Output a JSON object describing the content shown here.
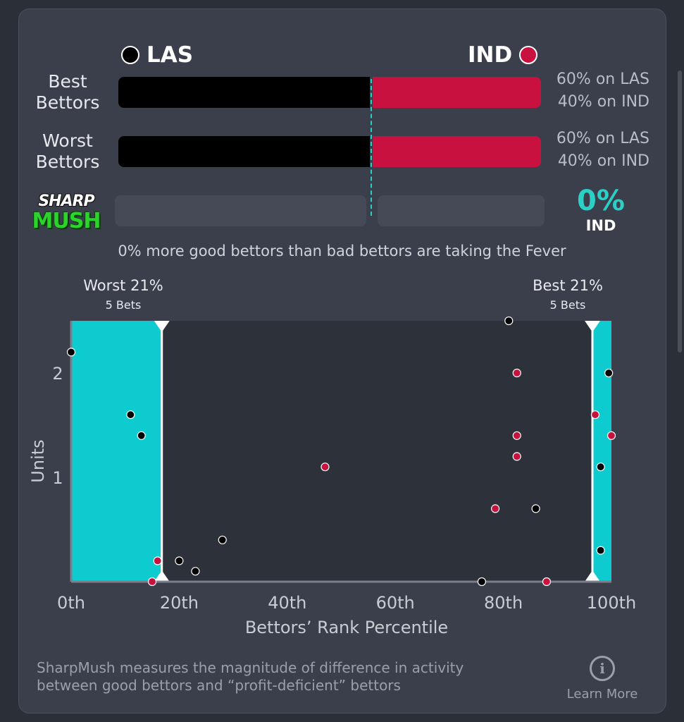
{
  "teams": {
    "left": {
      "code": "LAS",
      "color": "#000000"
    },
    "right": {
      "code": "IND",
      "color": "#c8113f"
    }
  },
  "rows": [
    {
      "label_line1": "Best",
      "label_line2": "Bettors",
      "left_pct": 60,
      "right_pct": 40,
      "left_text": "60% on LAS",
      "right_text": "40% on IND"
    },
    {
      "label_line1": "Worst",
      "label_line2": "Bettors",
      "left_pct": 60,
      "right_pct": 40,
      "left_text": "60% on LAS",
      "right_text": "40% on IND"
    }
  ],
  "sharpmush": {
    "logo_top": "SHARP",
    "logo_bottom": "MUSH",
    "value": "0%",
    "team": "IND",
    "fill_fraction": 0
  },
  "summary_text": "0% more good bettors than bad bettors are taking the Fever",
  "chart_data": {
    "type": "scatter",
    "xlabel": "Bettors’ Rank Percentile",
    "ylabel": "Units",
    "xlim": [
      0,
      100
    ],
    "ylim": [
      0,
      2.5
    ],
    "x_ticks": [
      0,
      20,
      40,
      60,
      80,
      100
    ],
    "x_tick_labels": [
      "0th",
      "20th",
      "40th",
      "60th",
      "80th",
      "100th"
    ],
    "y_ticks": [
      1,
      2
    ],
    "y_tick_labels": [
      "1",
      "2"
    ],
    "worst_region": {
      "label": "Worst 21%",
      "sublabel": "5 Bets",
      "x_from": 0,
      "x_to": 16
    },
    "best_region": {
      "label": "Best 21%",
      "sublabel": "5 Bets",
      "x_from": 97,
      "x_to": 100
    },
    "series": [
      {
        "team": "LAS",
        "color": "#000000",
        "points": [
          [
            0,
            2.2
          ],
          [
            11,
            1.6
          ],
          [
            13,
            1.4
          ],
          [
            20,
            0.2
          ],
          [
            23,
            0.1
          ],
          [
            28,
            0.4
          ],
          [
            76,
            0.0
          ],
          [
            81,
            2.5
          ],
          [
            86,
            0.7
          ],
          [
            98,
            1.1
          ],
          [
            98,
            0.3
          ],
          [
            99.5,
            2.0
          ]
        ]
      },
      {
        "team": "IND",
        "color": "#c8113f",
        "points": [
          [
            16,
            0.2
          ],
          [
            15,
            0.0
          ],
          [
            47,
            1.1
          ],
          [
            78.5,
            0.7
          ],
          [
            82.5,
            2.0
          ],
          [
            82.5,
            1.4
          ],
          [
            82.5,
            1.2
          ],
          [
            88,
            0.0
          ],
          [
            97,
            1.6
          ],
          [
            100,
            1.4
          ]
        ]
      }
    ]
  },
  "footer": {
    "line1": "SharpMush measures the magnitude of difference in activity",
    "line2": "between good bettors and “profit-deficient” bettors",
    "learn_more": "Learn More",
    "info_glyph": "i"
  }
}
